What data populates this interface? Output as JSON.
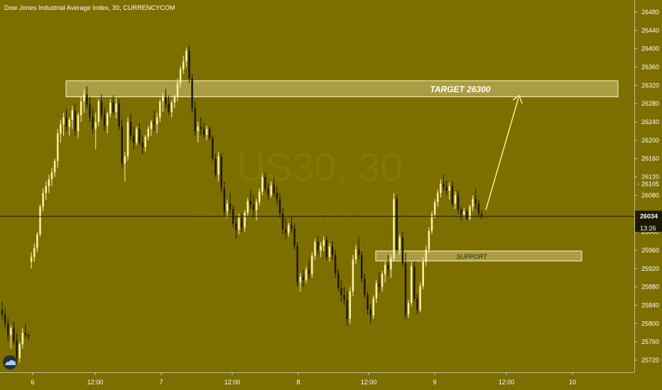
{
  "header": {
    "title": "Dow Jones Industrial Average Index, 30, CURRENCYCOM"
  },
  "watermark": {
    "line1": "US30, 30",
    "line2": "Dow Jones Industrial Average Index"
  },
  "colors": {
    "background": "#7d6e00",
    "bull_candle": "#fff2a6",
    "bear_candle": "#1a1a00",
    "zone_fill": "#fff6c0",
    "zone_border": "#fff6c0",
    "arrow": "#fff49a",
    "axis_text": "#ffffff",
    "price_line": "#1a1a00"
  },
  "annotations": {
    "target_label": "TARGET 26300",
    "support_label": "SUPPORT"
  },
  "price_tags": {
    "last_price": "26034",
    "countdown": "13:26",
    "high_marker": "26105"
  },
  "chart_data": {
    "type": "candlestick",
    "title": "Dow Jones Industrial Average Index, 30, CURRENCYCOM",
    "x_ticks": [
      "6",
      "12:00",
      "7",
      "12:00",
      "8",
      "12:00",
      "9",
      "12:00",
      "10"
    ],
    "y_ticks": [
      25720,
      25760,
      25800,
      25840,
      25880,
      25920,
      25960,
      26000,
      26040,
      26080,
      26120,
      26160,
      26200,
      26240,
      26280,
      26320,
      26360,
      26400,
      26440,
      26480
    ],
    "ylim": [
      25700,
      26494
    ],
    "grid": false,
    "last_price": 26034,
    "target_level": 26300,
    "zones": [
      {
        "label": "TARGET 26300",
        "low": 26295,
        "high": 26330
      },
      {
        "label": "SUPPORT",
        "low": 25950,
        "high": 25970
      }
    ],
    "ohlc": [
      [
        25830,
        25848,
        25808,
        25820
      ],
      [
        25820,
        25835,
        25790,
        25800
      ],
      [
        25800,
        25812,
        25762,
        25775
      ],
      [
        25775,
        25795,
        25745,
        25790
      ],
      [
        25790,
        25805,
        25755,
        25762
      ],
      [
        25762,
        25778,
        25718,
        25725
      ],
      [
        25725,
        25760,
        25715,
        25755
      ],
      [
        25755,
        25790,
        25745,
        25780
      ],
      [
        25780,
        25800,
        25768,
        25775
      ],
      [
        25775,
        25778,
        25765,
        25772
      ],
      [
        25935,
        25955,
        25920,
        25945
      ],
      [
        25945,
        25975,
        25935,
        25965
      ],
      [
        25965,
        26000,
        25955,
        25995
      ],
      [
        25995,
        26060,
        25990,
        26055
      ],
      [
        26055,
        26095,
        26045,
        26085
      ],
      [
        26085,
        26110,
        26070,
        26100
      ],
      [
        26100,
        26125,
        26085,
        26115
      ],
      [
        26115,
        26140,
        26100,
        26130
      ],
      [
        26130,
        26160,
        26120,
        26155
      ],
      [
        26155,
        26225,
        26140,
        26215
      ],
      [
        26215,
        26245,
        26195,
        26235
      ],
      [
        26235,
        26260,
        26210,
        26250
      ],
      [
        26250,
        26268,
        26220,
        26230
      ],
      [
        26230,
        26250,
        26210,
        26245
      ],
      [
        26245,
        26275,
        26225,
        26265
      ],
      [
        26265,
        26280,
        26210,
        26220
      ],
      [
        26220,
        26260,
        26205,
        26255
      ],
      [
        26255,
        26295,
        26240,
        26285
      ],
      [
        26285,
        26310,
        26260,
        26300
      ],
      [
        26300,
        26318,
        26270,
        26278
      ],
      [
        26278,
        26295,
        26240,
        26250
      ],
      [
        26250,
        26270,
        26215,
        26225
      ],
      [
        26225,
        26260,
        26180,
        26240
      ],
      [
        26240,
        26290,
        26230,
        26285
      ],
      [
        26285,
        26300,
        26245,
        26255
      ],
      [
        26255,
        26272,
        26220,
        26232
      ],
      [
        26232,
        26262,
        26215,
        26258
      ],
      [
        26258,
        26290,
        26250,
        26282
      ],
      [
        26282,
        26298,
        26255,
        26262
      ],
      [
        26262,
        26292,
        26248,
        26280
      ],
      [
        26280,
        26290,
        26222,
        26230
      ],
      [
        26230,
        26245,
        26140,
        26150
      ],
      [
        26150,
        26175,
        26110,
        26165
      ],
      [
        26165,
        26250,
        26155,
        26240
      ],
      [
        26240,
        26258,
        26200,
        26210
      ],
      [
        26210,
        26230,
        26180,
        26195
      ],
      [
        26195,
        26230,
        26190,
        26225
      ],
      [
        26225,
        26238,
        26190,
        26195
      ],
      [
        26195,
        26210,
        26170,
        26185
      ],
      [
        26185,
        26212,
        26175,
        26208
      ],
      [
        26208,
        26232,
        26200,
        26225
      ],
      [
        26225,
        26245,
        26210,
        26240
      ],
      [
        26240,
        26265,
        26220,
        26235
      ],
      [
        26235,
        26260,
        26215,
        26250
      ],
      [
        26250,
        26290,
        26240,
        26285
      ],
      [
        26285,
        26302,
        26262,
        26295
      ],
      [
        26295,
        26312,
        26270,
        26280
      ],
      [
        26280,
        26298,
        26255,
        26262
      ],
      [
        26262,
        26288,
        26250,
        26282
      ],
      [
        26282,
        26300,
        26270,
        26295
      ],
      [
        26295,
        26335,
        26285,
        26325
      ],
      [
        26325,
        26362,
        26315,
        26355
      ],
      [
        26355,
        26385,
        26345,
        26372
      ],
      [
        26372,
        26402,
        26360,
        26395
      ],
      [
        26395,
        26408,
        26325,
        26335
      ],
      [
        26335,
        26345,
        26260,
        26270
      ],
      [
        26270,
        26285,
        26210,
        26220
      ],
      [
        26220,
        26240,
        26195,
        26230
      ],
      [
        26230,
        26250,
        26212,
        26225
      ],
      [
        26225,
        26238,
        26205,
        26212
      ],
      [
        26212,
        26232,
        26200,
        26225
      ],
      [
        26225,
        26230,
        26200,
        26205
      ],
      [
        26205,
        26210,
        26155,
        26160
      ],
      [
        26160,
        26170,
        26120,
        26125
      ],
      [
        26125,
        26175,
        26110,
        26165
      ],
      [
        26165,
        26172,
        26085,
        26095
      ],
      [
        26095,
        26110,
        26035,
        26045
      ],
      [
        26045,
        26070,
        26030,
        26062
      ],
      [
        26062,
        26085,
        26040,
        26050
      ],
      [
        26050,
        26058,
        26010,
        26018
      ],
      [
        26018,
        26035,
        25985,
        26005
      ],
      [
        26005,
        26040,
        25995,
        26030
      ],
      [
        26030,
        26040,
        26000,
        26010
      ],
      [
        26010,
        26048,
        26000,
        26042
      ],
      [
        26042,
        26075,
        26035,
        26068
      ],
      [
        26068,
        26092,
        26050,
        26060
      ],
      [
        26060,
        26080,
        26030,
        26048
      ],
      [
        26048,
        26072,
        26025,
        26065
      ],
      [
        26065,
        26095,
        26058,
        26088
      ],
      [
        26088,
        26128,
        26080,
        26120
      ],
      [
        26120,
        26130,
        26088,
        26095
      ],
      [
        26095,
        26105,
        26070,
        26080
      ],
      [
        26080,
        26110,
        26075,
        26102
      ],
      [
        26102,
        26118,
        26078,
        26085
      ],
      [
        26085,
        26098,
        26060,
        26072
      ],
      [
        26072,
        26085,
        26030,
        26040
      ],
      [
        26040,
        26052,
        25995,
        26005
      ],
      [
        26005,
        26030,
        25985,
        25998
      ],
      [
        25998,
        26020,
        25990,
        26015
      ],
      [
        26015,
        26032,
        25998,
        26008
      ],
      [
        26008,
        26018,
        25962,
        25970
      ],
      [
        25970,
        25978,
        25880,
        25890
      ],
      [
        25890,
        25910,
        25870,
        25902
      ],
      [
        25902,
        25918,
        25880,
        25895
      ],
      [
        25895,
        25925,
        25888,
        25918
      ],
      [
        25918,
        25940,
        25898,
        25908
      ],
      [
        25908,
        25955,
        25900,
        25948
      ],
      [
        25948,
        25985,
        25940,
        25978
      ],
      [
        25978,
        25992,
        25950,
        25960
      ],
      [
        25960,
        25978,
        25945,
        25970
      ],
      [
        25970,
        25990,
        25958,
        25982
      ],
      [
        25982,
        25990,
        25938,
        25945
      ],
      [
        25945,
        25975,
        25935,
        25968
      ],
      [
        25968,
        25980,
        25940,
        25950
      ],
      [
        25950,
        25960,
        25900,
        25910
      ],
      [
        25910,
        25918,
        25870,
        25878
      ],
      [
        25878,
        25895,
        25848,
        25862
      ],
      [
        25862,
        25880,
        25840,
        25852
      ],
      [
        25852,
        25870,
        25795,
        25810
      ],
      [
        25810,
        25880,
        25800,
        25870
      ],
      [
        25870,
        25950,
        25860,
        25940
      ],
      [
        25940,
        25972,
        25930,
        25962
      ],
      [
        25962,
        25990,
        25940,
        25950
      ],
      [
        25950,
        25958,
        25890,
        25898
      ],
      [
        25898,
        25910,
        25855,
        25862
      ],
      [
        25862,
        25870,
        25820,
        25830
      ],
      [
        25830,
        25842,
        25800,
        25818
      ],
      [
        25818,
        25862,
        25810,
        25855
      ],
      [
        25855,
        25895,
        25845,
        25888
      ],
      [
        25888,
        25912,
        25868,
        25880
      ],
      [
        25880,
        25915,
        25870,
        25908
      ],
      [
        25908,
        25935,
        25890,
        25928
      ],
      [
        25928,
        25950,
        25905,
        25918
      ],
      [
        25918,
        25950,
        25900,
        25942
      ],
      [
        25942,
        26085,
        25935,
        26072
      ],
      [
        26072,
        26080,
        25955,
        25962
      ],
      [
        25962,
        25995,
        25950,
        25988
      ],
      [
        25988,
        26000,
        25925,
        25932
      ],
      [
        25932,
        25955,
        25810,
        25820
      ],
      [
        25820,
        25852,
        25812,
        25845
      ],
      [
        25845,
        25935,
        25838,
        25925
      ],
      [
        25925,
        25935,
        25848,
        25855
      ],
      [
        25855,
        25865,
        25820,
        25830
      ],
      [
        25830,
        25890,
        25825,
        25882
      ],
      [
        25882,
        25945,
        25875,
        25935
      ],
      [
        25935,
        25970,
        25925,
        25962
      ],
      [
        25962,
        26010,
        25955,
        26002
      ],
      [
        26002,
        26045,
        25995,
        26038
      ],
      [
        26038,
        26072,
        26030,
        26065
      ],
      [
        26065,
        26092,
        26055,
        26085
      ],
      [
        26085,
        26115,
        26075,
        26105
      ],
      [
        26105,
        26125,
        26090,
        26098
      ],
      [
        26098,
        26112,
        26080,
        26090
      ],
      [
        26090,
        26108,
        26070,
        26100
      ],
      [
        26100,
        26110,
        26055,
        26062
      ],
      [
        26062,
        26088,
        26050,
        26080
      ],
      [
        26080,
        26090,
        26040,
        26048
      ],
      [
        26048,
        26055,
        26025,
        26038
      ],
      [
        26038,
        26052,
        26032,
        26045
      ],
      [
        26045,
        26050,
        26025,
        26030
      ],
      [
        26030,
        26060,
        26025,
        26055
      ],
      [
        26055,
        26080,
        26045,
        26072
      ],
      [
        26072,
        26095,
        26050,
        26062
      ],
      [
        26062,
        26070,
        26032,
        26040
      ],
      [
        26040,
        26048,
        26028,
        26034
      ]
    ]
  }
}
